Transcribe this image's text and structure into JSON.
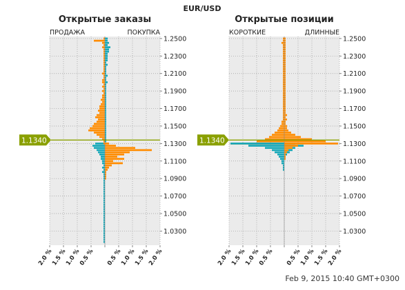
{
  "symbol": "EUR/USD",
  "footer_timestamp": "Feb 9, 2015 10:40 GMT+0300",
  "current_price": {
    "label": "1.1340",
    "value": 1.134,
    "color": "#8aa000"
  },
  "colors": {
    "sell": "#ff8c00",
    "buy": "#17a8b8",
    "grid_bg": "#ebebeb",
    "grid_line": "#9a9a9a"
  },
  "chart_data": [
    {
      "type": "bar",
      "orientation": "horizontal-butterfly",
      "title": "Открытые заказы",
      "left_label": "ПРОДАЖА",
      "right_label": "ПОКУПКА",
      "x_tick_labels": [
        "2.0 %",
        "1.5 %",
        "1.0 %",
        "0.5 %",
        "",
        "0.5 %",
        "1.0 %",
        "1.5 %",
        "2.0 %"
      ],
      "x_range_percent": [
        -2.0,
        2.0
      ],
      "y_ticks": [
        "1.2500",
        "1.2300",
        "1.2100",
        "1.1900",
        "1.1700",
        "1.1500",
        "1.1300",
        "1.1100",
        "1.0900",
        "1.0700",
        "1.0500",
        "1.0300"
      ],
      "y_range": [
        1.0138,
        1.2523
      ],
      "bin_size": 0.0025,
      "levels": [
        1.25,
        1.2475,
        1.245,
        1.2425,
        1.24,
        1.2375,
        1.235,
        1.2325,
        1.23,
        1.2275,
        1.225,
        1.2225,
        1.22,
        1.2175,
        1.215,
        1.2125,
        1.21,
        1.2075,
        1.205,
        1.2025,
        1.2,
        1.1975,
        1.195,
        1.1925,
        1.19,
        1.1875,
        1.185,
        1.1825,
        1.18,
        1.1775,
        1.175,
        1.1725,
        1.17,
        1.1675,
        1.165,
        1.1625,
        1.16,
        1.1575,
        1.155,
        1.1525,
        1.15,
        1.1475,
        1.145,
        1.1425,
        1.14,
        1.1375,
        1.135,
        1.1325,
        1.13,
        1.1275,
        1.125,
        1.1225,
        1.12,
        1.1175,
        1.115,
        1.1125,
        1.11,
        1.1075,
        1.105,
        1.1025,
        1.1,
        1.0975,
        1.095,
        1.0925,
        1.09,
        1.0875,
        1.085,
        1.0825,
        1.08,
        1.0775,
        1.075,
        1.0725,
        1.07,
        1.0675,
        1.065,
        1.0625,
        1.06,
        1.0575,
        1.055,
        1.0525,
        1.05,
        1.0475,
        1.045,
        1.0425,
        1.04,
        1.0375,
        1.035,
        1.0325,
        1.03,
        1.0275,
        1.025,
        1.0225,
        1.02,
        1.0175
      ],
      "sell_left": [
        0.05,
        0.4,
        0.1,
        0.05,
        0.1,
        0.05,
        0.05,
        0.05,
        0.05,
        0.05,
        0.05,
        0.05,
        0.05,
        0.05,
        0.05,
        0.05,
        0.1,
        0.05,
        0.05,
        0.1,
        0.1,
        0.05,
        0.1,
        0.05,
        0.1,
        0.05,
        0.1,
        0.1,
        0.15,
        0.1,
        0.15,
        0.2,
        0.2,
        0.25,
        0.2,
        0.3,
        0.35,
        0.25,
        0.3,
        0.4,
        0.45,
        0.55,
        0.6,
        0.4,
        0.3,
        0.2,
        0.1,
        0.05,
        0.05,
        0,
        0,
        0,
        0,
        0,
        0,
        0,
        0,
        0,
        0,
        0,
        0,
        0,
        0,
        0,
        0,
        0,
        0,
        0,
        0,
        0,
        0,
        0,
        0,
        0,
        0,
        0,
        0,
        0,
        0,
        0,
        0,
        0,
        0,
        0,
        0,
        0,
        0,
        0,
        0,
        0,
        0,
        0,
        0,
        0
      ],
      "sell_right": [
        0,
        0,
        0,
        0,
        0,
        0,
        0,
        0,
        0,
        0,
        0,
        0,
        0,
        0,
        0,
        0,
        0,
        0,
        0,
        0,
        0,
        0,
        0,
        0,
        0,
        0,
        0,
        0,
        0,
        0,
        0,
        0,
        0,
        0,
        0,
        0,
        0,
        0,
        0,
        0,
        0,
        0,
        0,
        0,
        0,
        0,
        0,
        0,
        0.15,
        0.4,
        1.1,
        1.7,
        0.9,
        0.7,
        0.45,
        0.7,
        0.3,
        0.65,
        0.25,
        0.15,
        0.1,
        0.05,
        0.05,
        0.05,
        0.05,
        0,
        0,
        0,
        0,
        0,
        0,
        0,
        0,
        0,
        0,
        0,
        0,
        0,
        0,
        0,
        0,
        0,
        0,
        0,
        0,
        0,
        0,
        0,
        0,
        0,
        0,
        0,
        0,
        0
      ],
      "buy_right": [
        0.1,
        0.1,
        0.15,
        0.1,
        0.2,
        0.15,
        0.15,
        0.1,
        0.1,
        0.1,
        0.1,
        0.05,
        0.1,
        0.05,
        0.05,
        0.05,
        0.05,
        0.1,
        0.05,
        0.05,
        0.1,
        0.05,
        0.05,
        0.05,
        0.05,
        0.05,
        0.05,
        0.05,
        0.05,
        0.05,
        0.05,
        0.05,
        0.05,
        0.05,
        0.05,
        0.05,
        0.05,
        0.05,
        0.05,
        0.05,
        0.05,
        0.05,
        0.05,
        0.05,
        0.05,
        0.05,
        0.05,
        0.05,
        0,
        0,
        0,
        0,
        0,
        0,
        0,
        0,
        0,
        0,
        0,
        0,
        0,
        0,
        0,
        0,
        0,
        0,
        0,
        0,
        0,
        0,
        0,
        0,
        0,
        0,
        0,
        0,
        0,
        0,
        0,
        0,
        0,
        0,
        0,
        0,
        0,
        0,
        0,
        0,
        0,
        0,
        0,
        0,
        0,
        0
      ],
      "buy_left": [
        0,
        0,
        0,
        0,
        0,
        0,
        0,
        0,
        0,
        0,
        0,
        0,
        0,
        0,
        0,
        0,
        0,
        0,
        0,
        0,
        0,
        0,
        0,
        0,
        0,
        0,
        0,
        0,
        0,
        0,
        0,
        0,
        0,
        0,
        0,
        0,
        0,
        0,
        0,
        0,
        0,
        0,
        0,
        0,
        0,
        0,
        0,
        0,
        0.35,
        0.45,
        0.4,
        0.3,
        0.25,
        0.2,
        0.15,
        0.15,
        0.1,
        0.1,
        0.05,
        0.1,
        0.05,
        0.1,
        0.05,
        0.05,
        0.05,
        0.05,
        0.05,
        0.05,
        0.05,
        0.05,
        0.05,
        0.05,
        0.05,
        0.05,
        0.05,
        0.05,
        0.05,
        0.05,
        0.05,
        0.05,
        0.05,
        0.05,
        0.05,
        0.05,
        0.05,
        0.05,
        0.05,
        0.05,
        0.05,
        0.05,
        0.05,
        0.05,
        0.05,
        0.05
      ]
    },
    {
      "type": "bar",
      "orientation": "horizontal-butterfly",
      "title": "Открытые позиции",
      "left_label": "КОРОТКИЕ",
      "right_label": "ДЛИННЫЕ",
      "x_tick_labels": [
        "2.0 %",
        "1.5 %",
        "1.0 %",
        "0.5 %",
        "",
        "0.5 %",
        "1.0 %",
        "1.5 %",
        "2.0 %"
      ],
      "x_range_percent": [
        -2.0,
        2.0
      ],
      "y_ticks": [
        "1.2500",
        "1.2300",
        "1.2100",
        "1.1900",
        "1.1700",
        "1.1500",
        "1.1300",
        "1.1100",
        "1.0900",
        "1.0700",
        "1.0500",
        "1.0300"
      ],
      "y_range": [
        1.0138,
        1.2523
      ],
      "bin_size": 0.0025,
      "levels": [
        1.25,
        1.2475,
        1.245,
        1.2425,
        1.24,
        1.2375,
        1.235,
        1.2325,
        1.23,
        1.2275,
        1.225,
        1.2225,
        1.22,
        1.2175,
        1.215,
        1.2125,
        1.21,
        1.2075,
        1.205,
        1.2025,
        1.2,
        1.1975,
        1.195,
        1.1925,
        1.19,
        1.1875,
        1.185,
        1.1825,
        1.18,
        1.1775,
        1.175,
        1.1725,
        1.17,
        1.1675,
        1.165,
        1.1625,
        1.16,
        1.1575,
        1.155,
        1.1525,
        1.15,
        1.1475,
        1.145,
        1.1425,
        1.14,
        1.1375,
        1.135,
        1.1325,
        1.13,
        1.1275,
        1.125,
        1.1225,
        1.12,
        1.1175,
        1.115,
        1.1125,
        1.11,
        1.1075,
        1.105,
        1.1025,
        1.1
      ],
      "long_right": [
        0.05,
        0.05,
        0.05,
        0.05,
        0.05,
        0.05,
        0.05,
        0.05,
        0.05,
        0.05,
        0.05,
        0.05,
        0.05,
        0.05,
        0.05,
        0.05,
        0.05,
        0.05,
        0.05,
        0.05,
        0.05,
        0.05,
        0.05,
        0.05,
        0.05,
        0.05,
        0.05,
        0.05,
        0.05,
        0.05,
        0.05,
        0.05,
        0.05,
        0.05,
        0.05,
        0.1,
        0.05,
        0.1,
        0.05,
        0.05,
        0.1,
        0.1,
        0.15,
        0.25,
        0.4,
        0.6,
        1.0,
        1.5,
        1.95,
        0.5,
        0.3,
        0.15,
        0.1,
        0.05,
        0.05,
        0.05,
        0,
        0,
        0,
        0,
        0
      ],
      "long_left": [
        0.05,
        0.05,
        0.1,
        0.05,
        0.05,
        0.05,
        0.05,
        0.05,
        0.05,
        0.05,
        0.05,
        0.05,
        0.05,
        0.05,
        0.05,
        0.05,
        0.05,
        0.05,
        0.05,
        0.05,
        0.05,
        0.05,
        0.05,
        0.05,
        0.05,
        0.05,
        0.05,
        0.05,
        0.05,
        0.05,
        0.05,
        0.05,
        0.05,
        0.05,
        0.05,
        0.05,
        0.05,
        0.05,
        0.1,
        0.1,
        0.15,
        0.2,
        0.25,
        0.35,
        0.45,
        0.55,
        0.7,
        1.0,
        1.95,
        0,
        0,
        0,
        0,
        0,
        0,
        0,
        0,
        0,
        0,
        0,
        0
      ],
      "short_left": [
        0,
        0,
        0,
        0,
        0,
        0,
        0,
        0,
        0,
        0,
        0,
        0,
        0,
        0,
        0,
        0,
        0,
        0,
        0,
        0,
        0,
        0,
        0,
        0,
        0,
        0,
        0,
        0,
        0,
        0,
        0,
        0,
        0,
        0,
        0,
        0,
        0,
        0,
        0,
        0,
        0,
        0,
        0,
        0,
        0,
        0,
        0,
        0,
        1.95,
        1.3,
        0.7,
        0.45,
        0.35,
        0.25,
        0.2,
        0.15,
        0.1,
        0.1,
        0.05,
        0.05,
        0.05
      ],
      "short_right": [
        0,
        0,
        0,
        0,
        0,
        0,
        0,
        0,
        0,
        0,
        0,
        0,
        0,
        0,
        0,
        0,
        0,
        0,
        0,
        0,
        0,
        0,
        0,
        0,
        0,
        0,
        0,
        0,
        0,
        0,
        0,
        0,
        0,
        0,
        0,
        0,
        0,
        0,
        0,
        0,
        0,
        0,
        0,
        0,
        0,
        0,
        0,
        0,
        0.4,
        0.7,
        0.4,
        0.3,
        0.2,
        0.1,
        0.05,
        0.05,
        0,
        0,
        0,
        0,
        0
      ]
    }
  ]
}
